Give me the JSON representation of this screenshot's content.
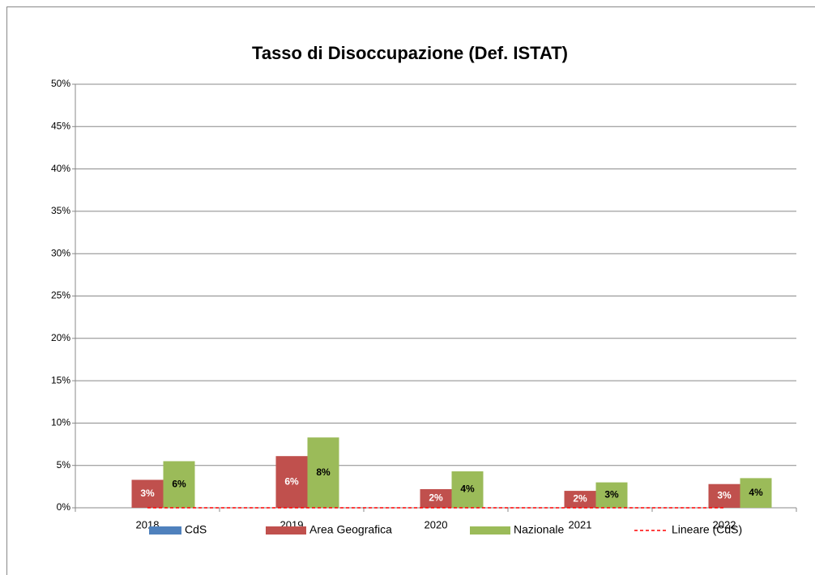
{
  "chart_data": {
    "type": "bar",
    "title": "Tasso di Disoccupazione (Def. ISTAT)",
    "categories": [
      "2018",
      "2019",
      "2020",
      "2021",
      "2022"
    ],
    "series": [
      {
        "name": "CdS",
        "color": "#4f81bd",
        "values": [
          0,
          0,
          0,
          0,
          0
        ]
      },
      {
        "name": "Area Geografica",
        "color": "#c0504d",
        "values": [
          3.3,
          6.1,
          2.2,
          2.0,
          2.8
        ],
        "value_labels": [
          "3%",
          "6%",
          "2%",
          "2%",
          "3%"
        ],
        "label_color": "#ffffff"
      },
      {
        "name": "Nazionale",
        "color": "#9bbb59",
        "values": [
          5.5,
          8.3,
          4.3,
          3.0,
          3.5
        ],
        "value_labels": [
          "6%",
          "8%",
          "4%",
          "3%",
          "4%"
        ],
        "label_color": "#000000"
      },
      {
        "name": "Lineare (CdS)",
        "type": "line",
        "dashed": true,
        "color": "#ff0000",
        "values": [
          0,
          0,
          0,
          0,
          0
        ]
      }
    ],
    "ylim": [
      0,
      50
    ],
    "yticks": [
      {
        "value": 0,
        "label": "0%"
      },
      {
        "value": 5,
        "label": "5%"
      },
      {
        "value": 10,
        "label": "10%"
      },
      {
        "value": 15,
        "label": "15%"
      },
      {
        "value": 20,
        "label": "20%"
      },
      {
        "value": 25,
        "label": "25%"
      },
      {
        "value": 30,
        "label": "30%"
      },
      {
        "value": 35,
        "label": "35%"
      },
      {
        "value": 40,
        "label": "40%"
      },
      {
        "value": 45,
        "label": "45%"
      },
      {
        "value": 50,
        "label": "50%"
      }
    ],
    "grid": true,
    "legend": "bottom"
  }
}
